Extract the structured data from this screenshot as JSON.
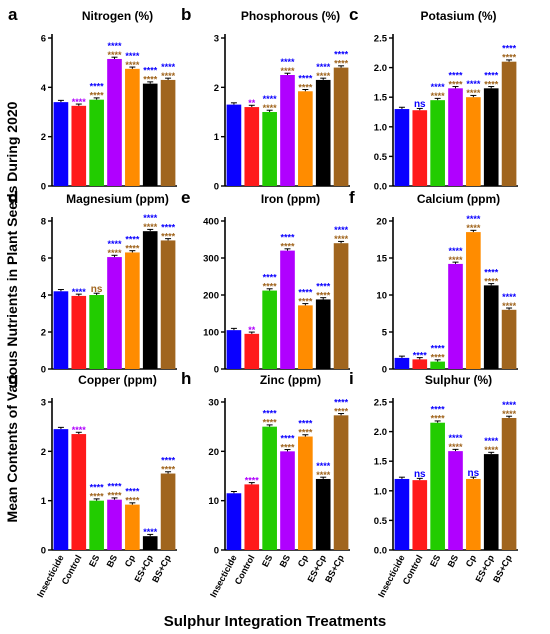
{
  "figure": {
    "ylabel": "Mean Contents of Various Nutrients in Plant Seeds During 2020",
    "xlabel": "Sulphur Integration Treatments",
    "colors": [
      "#0a00ff",
      "#ff1a1a",
      "#22cc00",
      "#b000ff",
      "#ff8c00",
      "#000000",
      "#a0651e"
    ]
  },
  "chart_data": [
    {
      "letter": "a",
      "type": "bar",
      "title": "Nitrogen (%)",
      "categories": [
        "Insecticide",
        "Control",
        "ES",
        "BS",
        "Cp",
        "ES+Cp",
        "BS+Cp"
      ],
      "values": [
        3.4,
        3.25,
        3.5,
        5.15,
        4.75,
        4.15,
        4.3
      ],
      "ylim": [
        0,
        6
      ],
      "yticks": [
        0,
        2,
        4,
        6
      ],
      "significance": [
        "",
        "****",
        "****",
        "****",
        "****",
        "****",
        "****"
      ],
      "sig_colors": [
        "",
        "#b000ff",
        "#0a00ff",
        "#0a00ff",
        "#0a00ff",
        "#0a00ff",
        "#0a00ff"
      ],
      "sig_colors2": [
        "",
        "",
        "#a0651e",
        "#a0651e",
        "#a0651e",
        "#a0651e",
        "#a0651e"
      ]
    },
    {
      "letter": "b",
      "type": "bar",
      "title": "Phosphorous (%)",
      "categories": [
        "Insecticide",
        "Control",
        "ES",
        "BS",
        "Cp",
        "ES+Cp",
        "BS+Cp"
      ],
      "values": [
        1.65,
        1.6,
        1.5,
        2.25,
        1.92,
        2.15,
        2.4
      ],
      "ylim": [
        0,
        3
      ],
      "yticks": [
        0,
        1,
        2,
        3
      ],
      "significance": [
        "",
        "**",
        "****",
        "****",
        "****",
        "****",
        "****"
      ],
      "sig_colors": [
        "",
        "#b000ff",
        "#0a00ff",
        "#0a00ff",
        "#0a00ff",
        "#0a00ff",
        "#0a00ff"
      ],
      "sig_colors2": [
        "",
        "",
        "#a0651e",
        "#a0651e",
        "#a0651e",
        "#a0651e",
        "#a0651e"
      ]
    },
    {
      "letter": "c",
      "type": "bar",
      "title": "Potasium (%)",
      "categories": [
        "Insecticide",
        "Control",
        "ES",
        "BS",
        "Cp",
        "ES+Cp",
        "BS+Cp"
      ],
      "values": [
        1.3,
        1.28,
        1.45,
        1.65,
        1.5,
        1.65,
        2.1
      ],
      "ylim": [
        0,
        2.5
      ],
      "yticks": [
        0,
        0.5,
        1.0,
        1.5,
        2.0,
        2.5
      ],
      "significance": [
        "",
        "ns",
        "****",
        "****",
        "****",
        "****",
        "****"
      ],
      "sig_colors": [
        "",
        "#0a00ff",
        "#0a00ff",
        "#0a00ff",
        "#0a00ff",
        "#0a00ff",
        "#0a00ff"
      ],
      "sig_colors2": [
        "",
        "",
        "#a0651e",
        "#a0651e",
        "#a0651e",
        "#a0651e",
        "#a0651e"
      ]
    },
    {
      "letter": "d",
      "type": "bar",
      "title": "Magnesium (ppm)",
      "categories": [
        "Insecticide",
        "Control",
        "ES",
        "BS",
        "Cp",
        "ES+Cp",
        "BS+Cp"
      ],
      "values": [
        4.2,
        3.95,
        4.0,
        6.05,
        6.3,
        7.45,
        6.95
      ],
      "ylim": [
        0,
        8
      ],
      "yticks": [
        0,
        2,
        4,
        6,
        8
      ],
      "significance": [
        "",
        "****",
        "ns",
        "****",
        "****",
        "****",
        "****"
      ],
      "sig_colors": [
        "",
        "#0a00ff",
        "#a0651e",
        "#0a00ff",
        "#0a00ff",
        "#0a00ff",
        "#0a00ff"
      ],
      "sig_colors2": [
        "",
        "",
        "",
        "#a0651e",
        "#a0651e",
        "#a0651e",
        "#a0651e"
      ]
    },
    {
      "letter": "e",
      "type": "bar",
      "title": "Iron (ppm)",
      "categories": [
        "Insecticide",
        "Control",
        "ES",
        "BS",
        "Cp",
        "ES+Cp",
        "BS+Cp"
      ],
      "values": [
        105,
        95,
        212,
        320,
        172,
        188,
        340
      ],
      "ylim": [
        0,
        400
      ],
      "yticks": [
        0,
        100,
        200,
        300,
        400
      ],
      "significance": [
        "",
        "**",
        "****",
        "****",
        "****",
        "****",
        "****"
      ],
      "sig_colors": [
        "",
        "#b000ff",
        "#0a00ff",
        "#0a00ff",
        "#0a00ff",
        "#0a00ff",
        "#0a00ff"
      ],
      "sig_colors2": [
        "",
        "",
        "#a0651e",
        "#a0651e",
        "#a0651e",
        "#a0651e",
        "#a0651e"
      ]
    },
    {
      "letter": "f",
      "type": "bar",
      "title": "Calcium (ppm)",
      "categories": [
        "Insecticide",
        "Control",
        "ES",
        "BS",
        "Cp",
        "ES+Cp",
        "BS+Cp"
      ],
      "values": [
        1.5,
        1.3,
        1.0,
        14.2,
        18.5,
        11.3,
        8.0
      ],
      "ylim": [
        0,
        20
      ],
      "yticks": [
        0,
        5,
        10,
        15,
        20
      ],
      "significance": [
        "",
        "****",
        "****",
        "****",
        "****",
        "****",
        "****"
      ],
      "sig_colors": [
        "",
        "#0a00ff",
        "#0a00ff",
        "#0a00ff",
        "#0a00ff",
        "#0a00ff",
        "#0a00ff"
      ],
      "sig_colors2": [
        "",
        "",
        "#a0651e",
        "#a0651e",
        "#a0651e",
        "#a0651e",
        "#a0651e"
      ]
    },
    {
      "letter": "g",
      "type": "bar",
      "title": "Copper (ppm)",
      "categories": [
        "Insecticide",
        "Control",
        "ES",
        "BS",
        "Cp",
        "ES+Cp",
        "BS+Cp"
      ],
      "values": [
        2.45,
        2.35,
        1.0,
        1.02,
        0.92,
        0.28,
        1.55
      ],
      "ylim": [
        0,
        3
      ],
      "yticks": [
        0,
        1,
        2,
        3
      ],
      "significance": [
        "",
        "****",
        "****",
        "****",
        "****",
        "****",
        "****"
      ],
      "sig_colors": [
        "",
        "#b000ff",
        "#0a00ff",
        "#0a00ff",
        "#0a00ff",
        "#0a00ff",
        "#0a00ff"
      ],
      "sig_colors2": [
        "",
        "",
        "#a0651e",
        "#a0651e",
        "#a0651e",
        "",
        "#a0651e"
      ]
    },
    {
      "letter": "h",
      "type": "bar",
      "title": "Zinc (ppm)",
      "categories": [
        "Insecticide",
        "Control",
        "ES",
        "BS",
        "Cp",
        "ES+Cp",
        "BS+Cp"
      ],
      "values": [
        11.5,
        13.3,
        25.0,
        20.0,
        23.0,
        14.4,
        27.3
      ],
      "ylim": [
        0,
        30
      ],
      "yticks": [
        0,
        10,
        20,
        30
      ],
      "significance": [
        "",
        "****",
        "****",
        "****",
        "****",
        "****",
        "****"
      ],
      "sig_colors": [
        "",
        "#b000ff",
        "#0a00ff",
        "#0a00ff",
        "#0a00ff",
        "#0a00ff",
        "#0a00ff"
      ],
      "sig_colors2": [
        "",
        "",
        "#a0651e",
        "#a0651e",
        "#a0651e",
        "#a0651e",
        "#a0651e"
      ]
    },
    {
      "letter": "i",
      "type": "bar",
      "title": "Sulphur (%)",
      "categories": [
        "Insecticide",
        "Control",
        "ES",
        "BS",
        "Cp",
        "ES+Cp",
        "BS+Cp"
      ],
      "values": [
        1.2,
        1.18,
        2.15,
        1.67,
        1.2,
        1.62,
        2.23
      ],
      "ylim": [
        0,
        2.5
      ],
      "yticks": [
        0,
        0.5,
        1.0,
        1.5,
        2.0,
        2.5
      ],
      "significance": [
        "",
        "ns",
        "****",
        "****",
        "ns",
        "****",
        "****"
      ],
      "sig_colors": [
        "",
        "#0a00ff",
        "#0a00ff",
        "#0a00ff",
        "#0a00ff",
        "#0a00ff",
        "#0a00ff"
      ],
      "sig_colors2": [
        "",
        "",
        "#a0651e",
        "#a0651e",
        "#a0651e",
        "#a0651e",
        "#a0651e"
      ]
    }
  ]
}
